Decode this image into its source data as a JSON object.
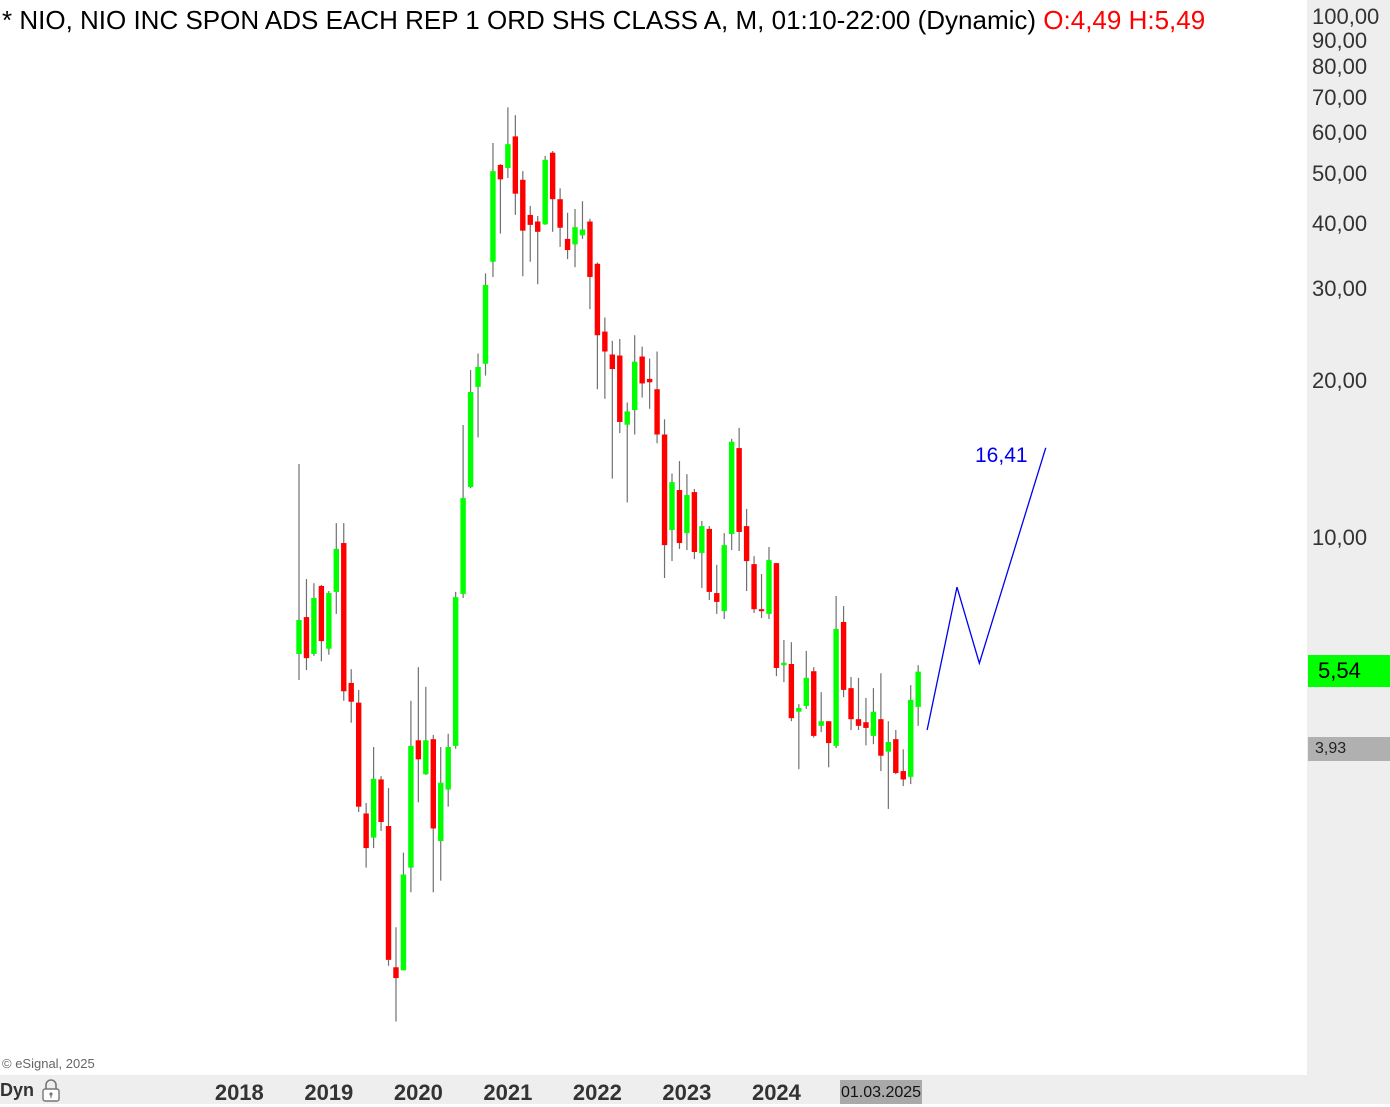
{
  "header": {
    "title": "* NIO, NIO INC SPON ADS EACH REP 1 ORD SHS CLASS A, M, 01:10-22:00 (Dynamic)",
    "ohlc_text": "O:4,49 H:5,49"
  },
  "footer": {
    "copyright": "© eSignal, 2025",
    "mode": "Dyn",
    "date_tag": "01.03.2025"
  },
  "price_tags": {
    "last": "5,54",
    "low": "3,93"
  },
  "projection": {
    "label": "16,41",
    "x_index": [
      84.2,
      88.2,
      91.2,
      100.1
    ],
    "price": [
      4.28,
      8.05,
      5.75,
      14.9
    ],
    "color": "#0000ee"
  },
  "chart_data": {
    "type": "candlestick",
    "title": "NIO, NIO INC SPON ADS EACH REP 1 ORD SHS CLASS A, M",
    "interval": "monthly",
    "start": "2018-09",
    "yscale": "log",
    "ylim": [
      1.0,
      105
    ],
    "y_ticks": [
      100,
      90,
      80,
      70,
      60,
      50,
      40,
      30,
      20,
      10
    ],
    "y_tick_labels": [
      "100,00",
      "90,00",
      "80,00",
      "70,00",
      "60,00",
      "50,00",
      "40,00",
      "30,00",
      "20,00",
      "10,00"
    ],
    "x_tick_labels": [
      "2018",
      "2019",
      "2020",
      "2021",
      "2022",
      "2023",
      "2024"
    ],
    "x_tick_index": [
      -8,
      4,
      16,
      28,
      40,
      52,
      64
    ],
    "up_color": "#00ff00",
    "down_color": "#ff0000",
    "wick_color": "#707070",
    "ohlc": [
      [
        5.99,
        13.87,
        5.34,
        6.96
      ],
      [
        7.05,
        8.34,
        5.58,
        5.88
      ],
      [
        5.99,
        8.19,
        5.94,
        7.67
      ],
      [
        8.09,
        8.13,
        5.8,
        6.34
      ],
      [
        6.13,
        7.91,
        5.97,
        7.84
      ],
      [
        7.88,
        10.68,
        7.15,
        9.53
      ],
      [
        9.78,
        10.68,
        4.87,
        5.08
      ],
      [
        5.27,
        5.6,
        4.42,
        4.85
      ],
      [
        4.83,
        5.11,
        2.98,
        3.05
      ],
      [
        2.96,
        3.1,
        2.33,
        2.54
      ],
      [
        2.66,
        3.97,
        2.54,
        3.45
      ],
      [
        3.44,
        3.49,
        2.74,
        2.85
      ],
      [
        2.8,
        3.31,
        1.51,
        1.55
      ],
      [
        1.5,
        1.79,
        1.18,
        1.43
      ],
      [
        1.48,
        2.49,
        1.48,
        2.26
      ],
      [
        2.33,
        4.87,
        2.09,
        3.99
      ],
      [
        4.09,
        5.65,
        3.11,
        3.76
      ],
      [
        3.52,
        5.18,
        3.51,
        4.09
      ],
      [
        4.11,
        4.19,
        2.09,
        2.77
      ],
      [
        2.62,
        3.97,
        2.2,
        3.39
      ],
      [
        3.29,
        4.21,
        3.05,
        3.97
      ],
      [
        3.99,
        7.88,
        3.94,
        7.7
      ],
      [
        7.81,
        16.48,
        7.67,
        11.93
      ],
      [
        12.53,
        21.0,
        12.47,
        19.06
      ],
      [
        19.5,
        22.6,
        15.6,
        21.3
      ],
      [
        21.6,
        32.2,
        20.5,
        30.6
      ],
      [
        33.9,
        57.3,
        31.7,
        50.6
      ],
      [
        52.0,
        52.2,
        38.4,
        48.8
      ],
      [
        51.3,
        67.1,
        49.1,
        57.0
      ],
      [
        59.0,
        64.8,
        41.7,
        45.8
      ],
      [
        48.7,
        50.6,
        31.8,
        38.9
      ],
      [
        41.7,
        43.4,
        33.9,
        39.9
      ],
      [
        40.5,
        41.5,
        30.7,
        38.7
      ],
      [
        40.0,
        54.1,
        39.9,
        53.2
      ],
      [
        54.9,
        55.3,
        38.7,
        44.7
      ],
      [
        44.7,
        46.9,
        36.2,
        39.4
      ],
      [
        37.5,
        42.1,
        34.3,
        35.7
      ],
      [
        36.6,
        42.8,
        33.1,
        39.5
      ],
      [
        38.1,
        44.3,
        37.5,
        39.1
      ],
      [
        40.5,
        41.0,
        27.5,
        31.7
      ],
      [
        33.6,
        33.8,
        19.3,
        24.5
      ],
      [
        24.9,
        26.5,
        18.5,
        22.8
      ],
      [
        22.5,
        23.9,
        13.0,
        21.1
      ],
      [
        22.4,
        24.1,
        15.9,
        16.7
      ],
      [
        16.5,
        18.2,
        11.7,
        17.5
      ],
      [
        17.6,
        24.5,
        15.8,
        21.8
      ],
      [
        22.3,
        23.3,
        18.6,
        19.8
      ],
      [
        20.2,
        22.1,
        17.7,
        19.9
      ],
      [
        19.3,
        22.8,
        15.2,
        15.8
      ],
      [
        15.8,
        16.9,
        8.38,
        9.69
      ],
      [
        10.36,
        13.3,
        9.03,
        12.8
      ],
      [
        12.36,
        14.05,
        9.53,
        9.78
      ],
      [
        10.22,
        13.26,
        9.48,
        12.09
      ],
      [
        12.25,
        12.42,
        9.11,
        9.4
      ],
      [
        9.36,
        10.78,
        8.02,
        10.54
      ],
      [
        10.41,
        10.54,
        7.6,
        7.88
      ],
      [
        7.84,
        8.88,
        7.15,
        7.54
      ],
      [
        7.24,
        10.22,
        6.99,
        9.69
      ],
      [
        10.18,
        15.5,
        9.48,
        15.3
      ],
      [
        14.88,
        16.27,
        9.44,
        10.27
      ],
      [
        10.54,
        11.37,
        7.91,
        9.03
      ],
      [
        8.91,
        9.23,
        7.18,
        7.3
      ],
      [
        7.3,
        8.53,
        7.02,
        7.24
      ],
      [
        7.15,
        9.61,
        6.99,
        9.07
      ],
      [
        8.95,
        8.95,
        5.43,
        5.63
      ],
      [
        5.7,
        6.37,
        5.29,
        5.76
      ],
      [
        5.73,
        6.31,
        4.45,
        4.51
      ],
      [
        4.64,
        4.8,
        3.6,
        4.72
      ],
      [
        4.76,
        6.07,
        4.7,
        5.39
      ],
      [
        5.55,
        5.65,
        4.14,
        4.17
      ],
      [
        4.36,
        5.06,
        4.24,
        4.45
      ],
      [
        4.45,
        4.45,
        3.63,
        4.04
      ],
      [
        3.99,
        7.74,
        3.95,
        6.69
      ],
      [
        6.9,
        7.4,
        4.95,
        5.11
      ],
      [
        5.15,
        5.41,
        4.28,
        4.49
      ],
      [
        4.49,
        5.39,
        4.28,
        4.36
      ],
      [
        4.43,
        4.93,
        4.0,
        4.32
      ],
      [
        4.17,
        5.15,
        4.02,
        4.64
      ],
      [
        4.49,
        5.5,
        3.57,
        3.82
      ],
      [
        3.89,
        4.45,
        3.02,
        4.06
      ],
      [
        4.11,
        4.28,
        3.52,
        3.54
      ],
      [
        3.57,
        3.93,
        3.34,
        3.44
      ],
      [
        3.48,
        5.22,
        3.37,
        4.89
      ],
      [
        4.74,
        5.7,
        4.36,
        5.54
      ]
    ]
  }
}
